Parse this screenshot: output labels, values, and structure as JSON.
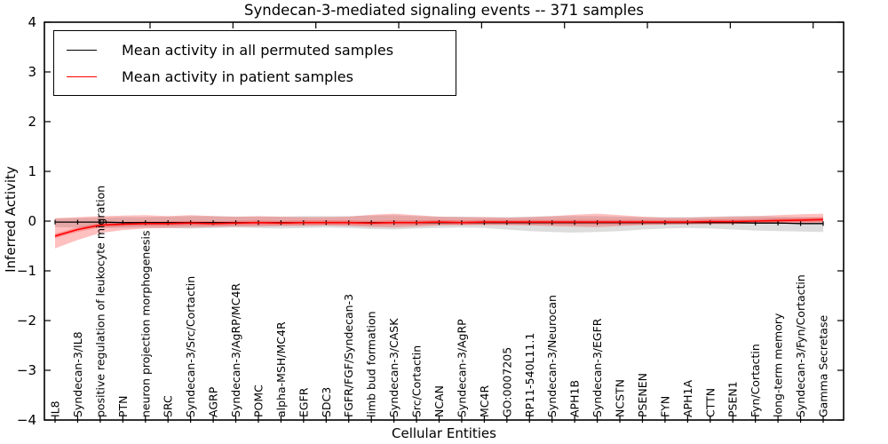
{
  "title": "Syndecan-3-mediated signaling events -- 371 samples",
  "axes": {
    "xlabel": "Cellular Entities",
    "ylabel": "Inferred Activity",
    "y_tick_labels": [
      "4",
      "3",
      "2",
      "1",
      "0",
      "−1",
      "−2",
      "−3",
      "−4"
    ]
  },
  "legend": {
    "entries": [
      {
        "label": "Mean activity in all permuted samples",
        "color": "#000000"
      },
      {
        "label": "Mean activity in patient samples",
        "color": "#ff0000"
      }
    ]
  },
  "colors": {
    "permuted_line": "#000000",
    "patient_line": "#ff0000",
    "permuted_band": "rgba(120,120,120,0.25)",
    "patient_band": "rgba(255,30,30,0.28)",
    "frame": "#000000"
  },
  "chart_data": {
    "type": "line",
    "title": "Syndecan-3-mediated signaling events -- 371 samples",
    "xlabel": "Cellular Entities",
    "ylabel": "Inferred Activity",
    "ylim": [
      -4,
      4
    ],
    "grid": false,
    "legend_position": "upper left",
    "categories": [
      "IL8",
      "Syndecan-3/IL8",
      "positive regulation of leukocyte migration",
      "PTN",
      "neuron projection morphogenesis",
      "SRC",
      "Syndecan-3/Src/Cortactin",
      "AGRP",
      "Syndecan-3/AgRP/MC4R",
      "POMC",
      "alpha-MSH/MC4R",
      "EGFR",
      "SDC3",
      "FGFR/FGF/Syndecan-3",
      "limb bud formation",
      "Syndecan-3/CASK",
      "Src/Cortactin",
      "NCAN",
      "Syndecan-3/AgRP",
      "MC4R",
      "GO:0007205",
      "RP11-540L11.1",
      "Syndecan-3/Neurocan",
      "APH1B",
      "Syndecan-3/EGFR",
      "NCSTN",
      "PSENEN",
      "FYN",
      "APH1A",
      "CTTN",
      "PSEN1",
      "Fyn/Cortactin",
      "long-term memory",
      "Syndecan-3/Fyn/Cortactin",
      "Gamma Secretase"
    ],
    "series": [
      {
        "name": "Mean activity in all permuted samples",
        "color": "#000000",
        "values": [
          -0.02,
          -0.02,
          -0.02,
          -0.03,
          -0.03,
          -0.03,
          -0.03,
          -0.03,
          -0.03,
          -0.03,
          -0.03,
          -0.03,
          -0.03,
          -0.03,
          -0.03,
          -0.03,
          -0.03,
          -0.03,
          -0.03,
          -0.03,
          -0.03,
          -0.03,
          -0.03,
          -0.03,
          -0.03,
          -0.03,
          -0.03,
          -0.03,
          -0.03,
          -0.03,
          -0.03,
          -0.04,
          -0.04,
          -0.05,
          -0.05
        ],
        "band_hi": [
          0.05,
          0.06,
          0.07,
          0.08,
          0.08,
          0.09,
          0.1,
          0.1,
          0.09,
          0.09,
          0.09,
          0.1,
          0.1,
          0.1,
          0.11,
          0.12,
          0.1,
          0.09,
          0.09,
          0.08,
          0.08,
          0.09,
          0.1,
          0.1,
          0.1,
          0.09,
          0.08,
          0.08,
          0.08,
          0.09,
          0.1,
          0.1,
          0.09,
          0.08,
          0.08
        ],
        "band_lo": [
          -0.12,
          -0.13,
          -0.14,
          -0.14,
          -0.13,
          -0.14,
          -0.15,
          -0.14,
          -0.13,
          -0.14,
          -0.15,
          -0.14,
          -0.13,
          -0.14,
          -0.16,
          -0.17,
          -0.15,
          -0.14,
          -0.13,
          -0.14,
          -0.17,
          -0.2,
          -0.22,
          -0.23,
          -0.22,
          -0.2,
          -0.17,
          -0.15,
          -0.14,
          -0.15,
          -0.17,
          -0.19,
          -0.2,
          -0.21,
          -0.22
        ]
      },
      {
        "name": "Mean activity in patient samples",
        "color": "#ff0000",
        "values": [
          -0.3,
          -0.17,
          -0.08,
          -0.06,
          -0.05,
          -0.05,
          -0.04,
          -0.05,
          -0.04,
          -0.03,
          -0.04,
          -0.03,
          -0.03,
          -0.03,
          -0.04,
          -0.03,
          -0.03,
          -0.02,
          -0.03,
          -0.02,
          -0.02,
          -0.02,
          -0.02,
          -0.02,
          -0.02,
          -0.02,
          -0.02,
          -0.02,
          -0.02,
          -0.01,
          -0.01,
          0.0,
          0.01,
          0.02,
          0.03
        ],
        "band_hi": [
          0.06,
          0.08,
          0.1,
          0.11,
          0.12,
          0.1,
          0.12,
          0.1,
          0.09,
          0.1,
          0.09,
          0.08,
          0.08,
          0.09,
          0.13,
          0.15,
          0.12,
          0.09,
          0.08,
          0.08,
          0.07,
          0.08,
          0.1,
          0.13,
          0.15,
          0.12,
          0.09,
          0.07,
          0.07,
          0.08,
          0.09,
          0.1,
          0.12,
          0.14,
          0.15
        ],
        "band_lo": [
          -0.55,
          -0.38,
          -0.24,
          -0.18,
          -0.15,
          -0.14,
          -0.13,
          -0.12,
          -0.11,
          -0.11,
          -0.1,
          -0.1,
          -0.09,
          -0.1,
          -0.12,
          -0.13,
          -0.11,
          -0.09,
          -0.08,
          -0.08,
          -0.08,
          -0.09,
          -0.1,
          -0.11,
          -0.12,
          -0.1,
          -0.08,
          -0.07,
          -0.06,
          -0.06,
          -0.06,
          -0.05,
          -0.05,
          -0.04,
          -0.04
        ]
      }
    ]
  }
}
